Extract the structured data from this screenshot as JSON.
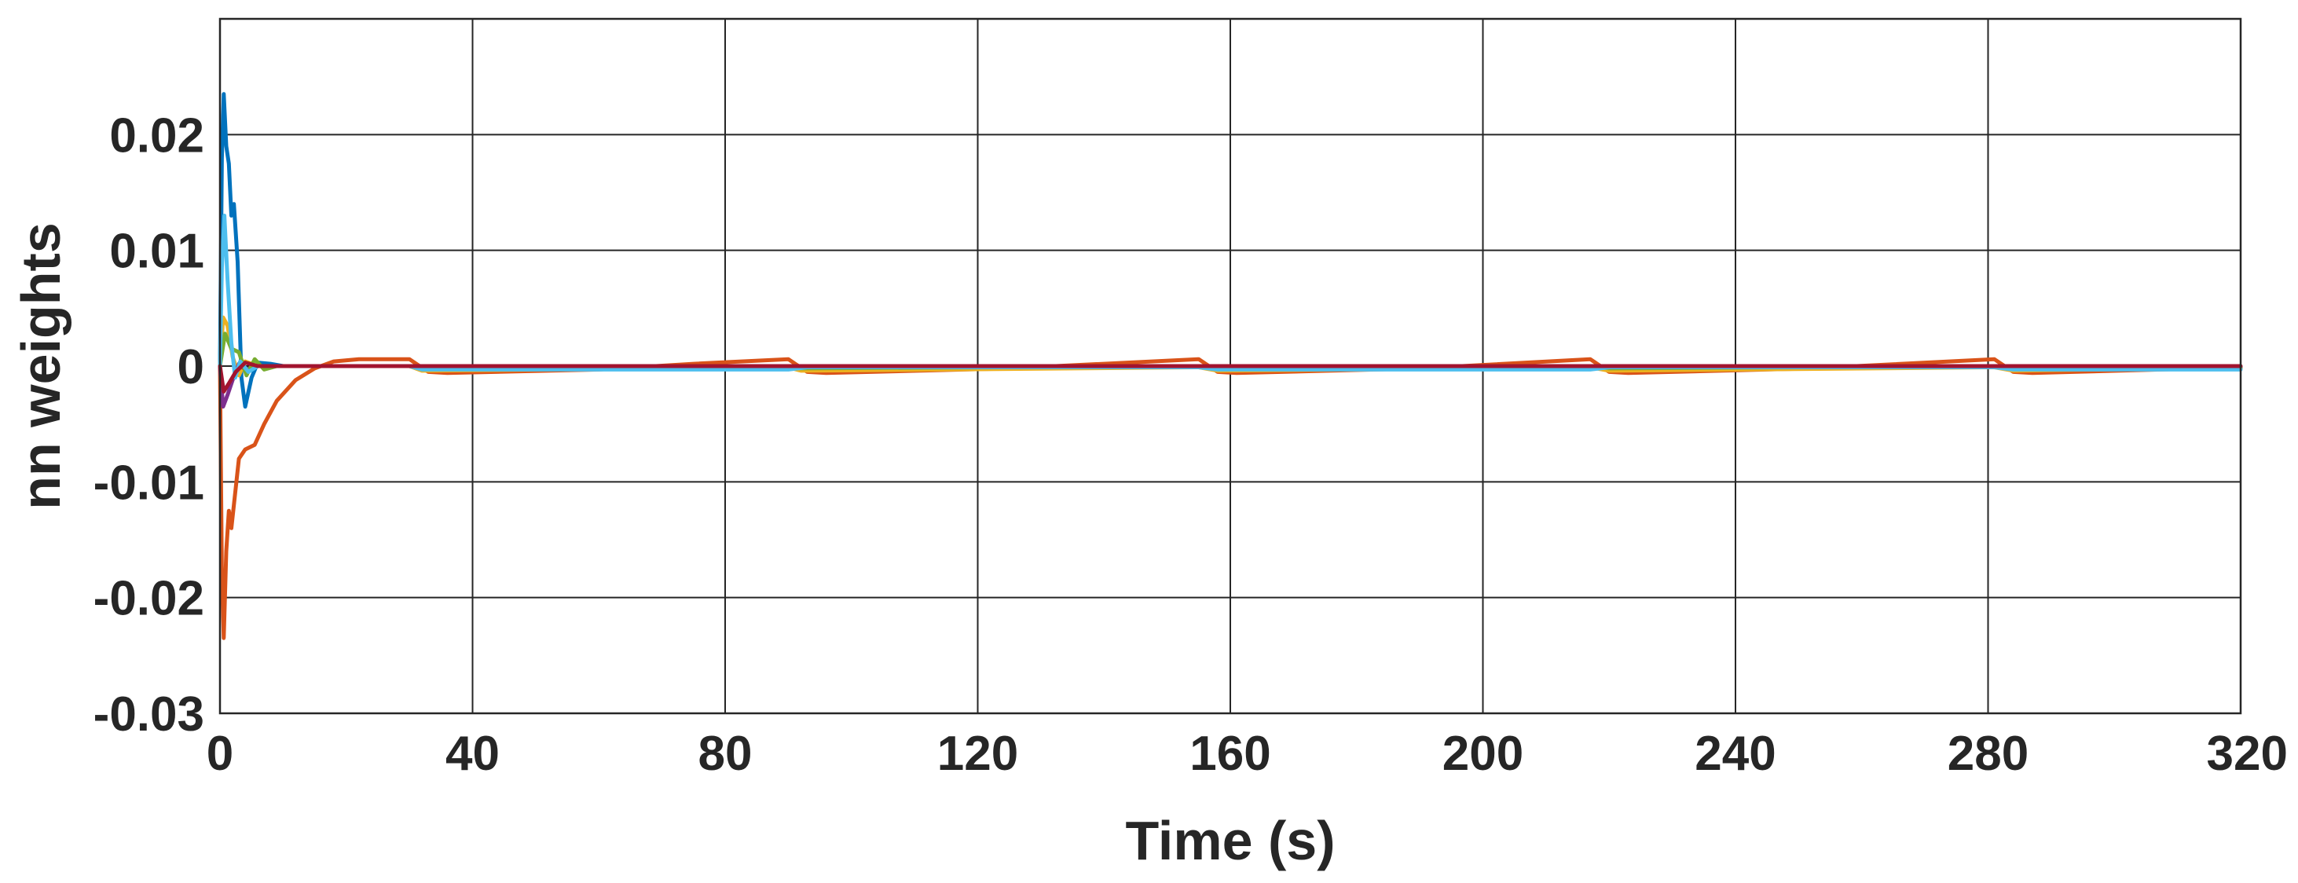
{
  "chart_data": {
    "type": "line",
    "title": "",
    "xlabel": "Time (s)",
    "ylabel": "nn weights",
    "xlim": [
      0,
      320
    ],
    "ylim": [
      -0.03,
      0.03
    ],
    "x_ticks": [
      0,
      40,
      80,
      120,
      160,
      200,
      240,
      280,
      320
    ],
    "x_tick_labels": [
      "0",
      "40",
      "80",
      "120",
      "160",
      "200",
      "240",
      "280",
      "320"
    ],
    "y_ticks": [
      -0.03,
      -0.02,
      -0.01,
      0,
      0.01,
      0.02
    ],
    "y_tick_labels": [
      "-0.03",
      "-0.02",
      "-0.01",
      "0",
      "0.01",
      "0.02"
    ],
    "grid": true,
    "legend": "none",
    "series": [
      {
        "color": "#0072BD",
        "points": [
          [
            0,
            0
          ],
          [
            0.3,
            0.018
          ],
          [
            0.6,
            0.0235
          ],
          [
            1.0,
            0.019
          ],
          [
            1.4,
            0.0175
          ],
          [
            1.8,
            0.013
          ],
          [
            2.2,
            0.014
          ],
          [
            2.8,
            0.009
          ],
          [
            3.4,
            -0.001
          ],
          [
            4.0,
            -0.0035
          ],
          [
            5,
            -0.001
          ],
          [
            6,
            0.0003
          ],
          [
            8,
            0.0002
          ],
          [
            10,
            0
          ],
          [
            30,
            0
          ],
          [
            32,
            -0.0002
          ],
          [
            90,
            -0.0002
          ],
          [
            92,
            0
          ],
          [
            155,
            0
          ],
          [
            157,
            -0.0002
          ],
          [
            217,
            -0.0002
          ],
          [
            219,
            0
          ],
          [
            282,
            0
          ],
          [
            284,
            -0.0002
          ],
          [
            320,
            -0.0002
          ]
        ]
      },
      {
        "color": "#D95319",
        "points": [
          [
            0,
            0
          ],
          [
            0.3,
            -0.018
          ],
          [
            0.6,
            -0.0235
          ],
          [
            1.0,
            -0.016
          ],
          [
            1.4,
            -0.0125
          ],
          [
            1.8,
            -0.014
          ],
          [
            2.2,
            -0.012
          ],
          [
            3.0,
            -0.008
          ],
          [
            4.0,
            -0.0072
          ],
          [
            5.5,
            -0.0068
          ],
          [
            7,
            -0.005
          ],
          [
            9,
            -0.003
          ],
          [
            12,
            -0.0012
          ],
          [
            15,
            -0.0002
          ],
          [
            18,
            0.0004
          ],
          [
            22,
            0.0006
          ],
          [
            30,
            0.0006
          ],
          [
            33,
            -0.0005
          ],
          [
            36,
            -0.0006
          ],
          [
            60,
            -0.0003
          ],
          [
            75,
            0.0002
          ],
          [
            90,
            0.0006
          ],
          [
            93,
            -0.0005
          ],
          [
            96,
            -0.0006
          ],
          [
            125,
            -0.0002
          ],
          [
            155,
            0.0006
          ],
          [
            158,
            -0.0005
          ],
          [
            161,
            -0.0006
          ],
          [
            190,
            -0.0002
          ],
          [
            217,
            0.0006
          ],
          [
            220,
            -0.0005
          ],
          [
            223,
            -0.0006
          ],
          [
            252,
            -0.0002
          ],
          [
            281,
            0.0006
          ],
          [
            284,
            -0.0005
          ],
          [
            287,
            -0.0006
          ],
          [
            320,
            -0.0001
          ]
        ]
      },
      {
        "color": "#EDB120",
        "points": [
          [
            0,
            0
          ],
          [
            0.5,
            0.0042
          ],
          [
            1.2,
            0.0035
          ],
          [
            2,
            0.0008
          ],
          [
            3,
            -0.0008
          ],
          [
            4,
            0.0004
          ],
          [
            6,
            0
          ],
          [
            30,
            0
          ],
          [
            32,
            -0.0004
          ],
          [
            90,
            -0.0001
          ],
          [
            92,
            -0.0004
          ],
          [
            155,
            -0.0001
          ],
          [
            158,
            -0.0004
          ],
          [
            217,
            -0.0001
          ],
          [
            220,
            -0.0004
          ],
          [
            281,
            -0.0001
          ],
          [
            284,
            -0.0004
          ],
          [
            320,
            -0.0001
          ]
        ]
      },
      {
        "color": "#7E2F8E",
        "points": [
          [
            0,
            0
          ],
          [
            0.5,
            -0.0035
          ],
          [
            1.2,
            -0.0025
          ],
          [
            2,
            -0.0012
          ],
          [
            3,
            0.0002
          ],
          [
            4,
            -0.0003
          ],
          [
            6,
            0
          ],
          [
            30,
            0
          ],
          [
            32,
            -0.0001
          ],
          [
            320,
            -0.0001
          ]
        ]
      },
      {
        "color": "#77AC30",
        "points": [
          [
            0,
            0
          ],
          [
            0.8,
            0.0028
          ],
          [
            1.8,
            0.0015
          ],
          [
            3,
            0.0012
          ],
          [
            4.2,
            -0.0008
          ],
          [
            5.5,
            0.0006
          ],
          [
            7,
            -0.0003
          ],
          [
            9,
            0
          ],
          [
            30,
            0
          ],
          [
            32,
            -0.0001
          ],
          [
            90,
            0
          ],
          [
            92,
            -0.0002
          ],
          [
            155,
            0
          ],
          [
            158,
            -0.0002
          ],
          [
            217,
            0
          ],
          [
            220,
            -0.0002
          ],
          [
            281,
            0
          ],
          [
            284,
            -0.0002
          ],
          [
            320,
            -0.0002
          ]
        ]
      },
      {
        "color": "#4DBEEE",
        "points": [
          [
            0,
            0
          ],
          [
            0.3,
            0.0085
          ],
          [
            0.7,
            0.013
          ],
          [
            1.2,
            0.0075
          ],
          [
            1.8,
            0.002
          ],
          [
            2.4,
            -0.001
          ],
          [
            3.2,
            0.0004
          ],
          [
            4.5,
            -0.0005
          ],
          [
            6,
            0
          ],
          [
            30,
            0
          ],
          [
            32,
            -0.0003
          ],
          [
            90,
            -0.0003
          ],
          [
            93,
            -0.0001
          ],
          [
            155,
            -0.0001
          ],
          [
            158,
            -0.0003
          ],
          [
            217,
            -0.0003
          ],
          [
            220,
            -0.0001
          ],
          [
            281,
            -0.0001
          ],
          [
            284,
            -0.0003
          ],
          [
            320,
            -0.0003
          ]
        ]
      },
      {
        "color": "#A2142F",
        "points": [
          [
            0,
            0
          ],
          [
            0.6,
            -0.0022
          ],
          [
            1.4,
            -0.0015
          ],
          [
            2.5,
            -0.0005
          ],
          [
            4,
            0.0003
          ],
          [
            6,
            0
          ],
          [
            320,
            0
          ]
        ]
      }
    ]
  }
}
